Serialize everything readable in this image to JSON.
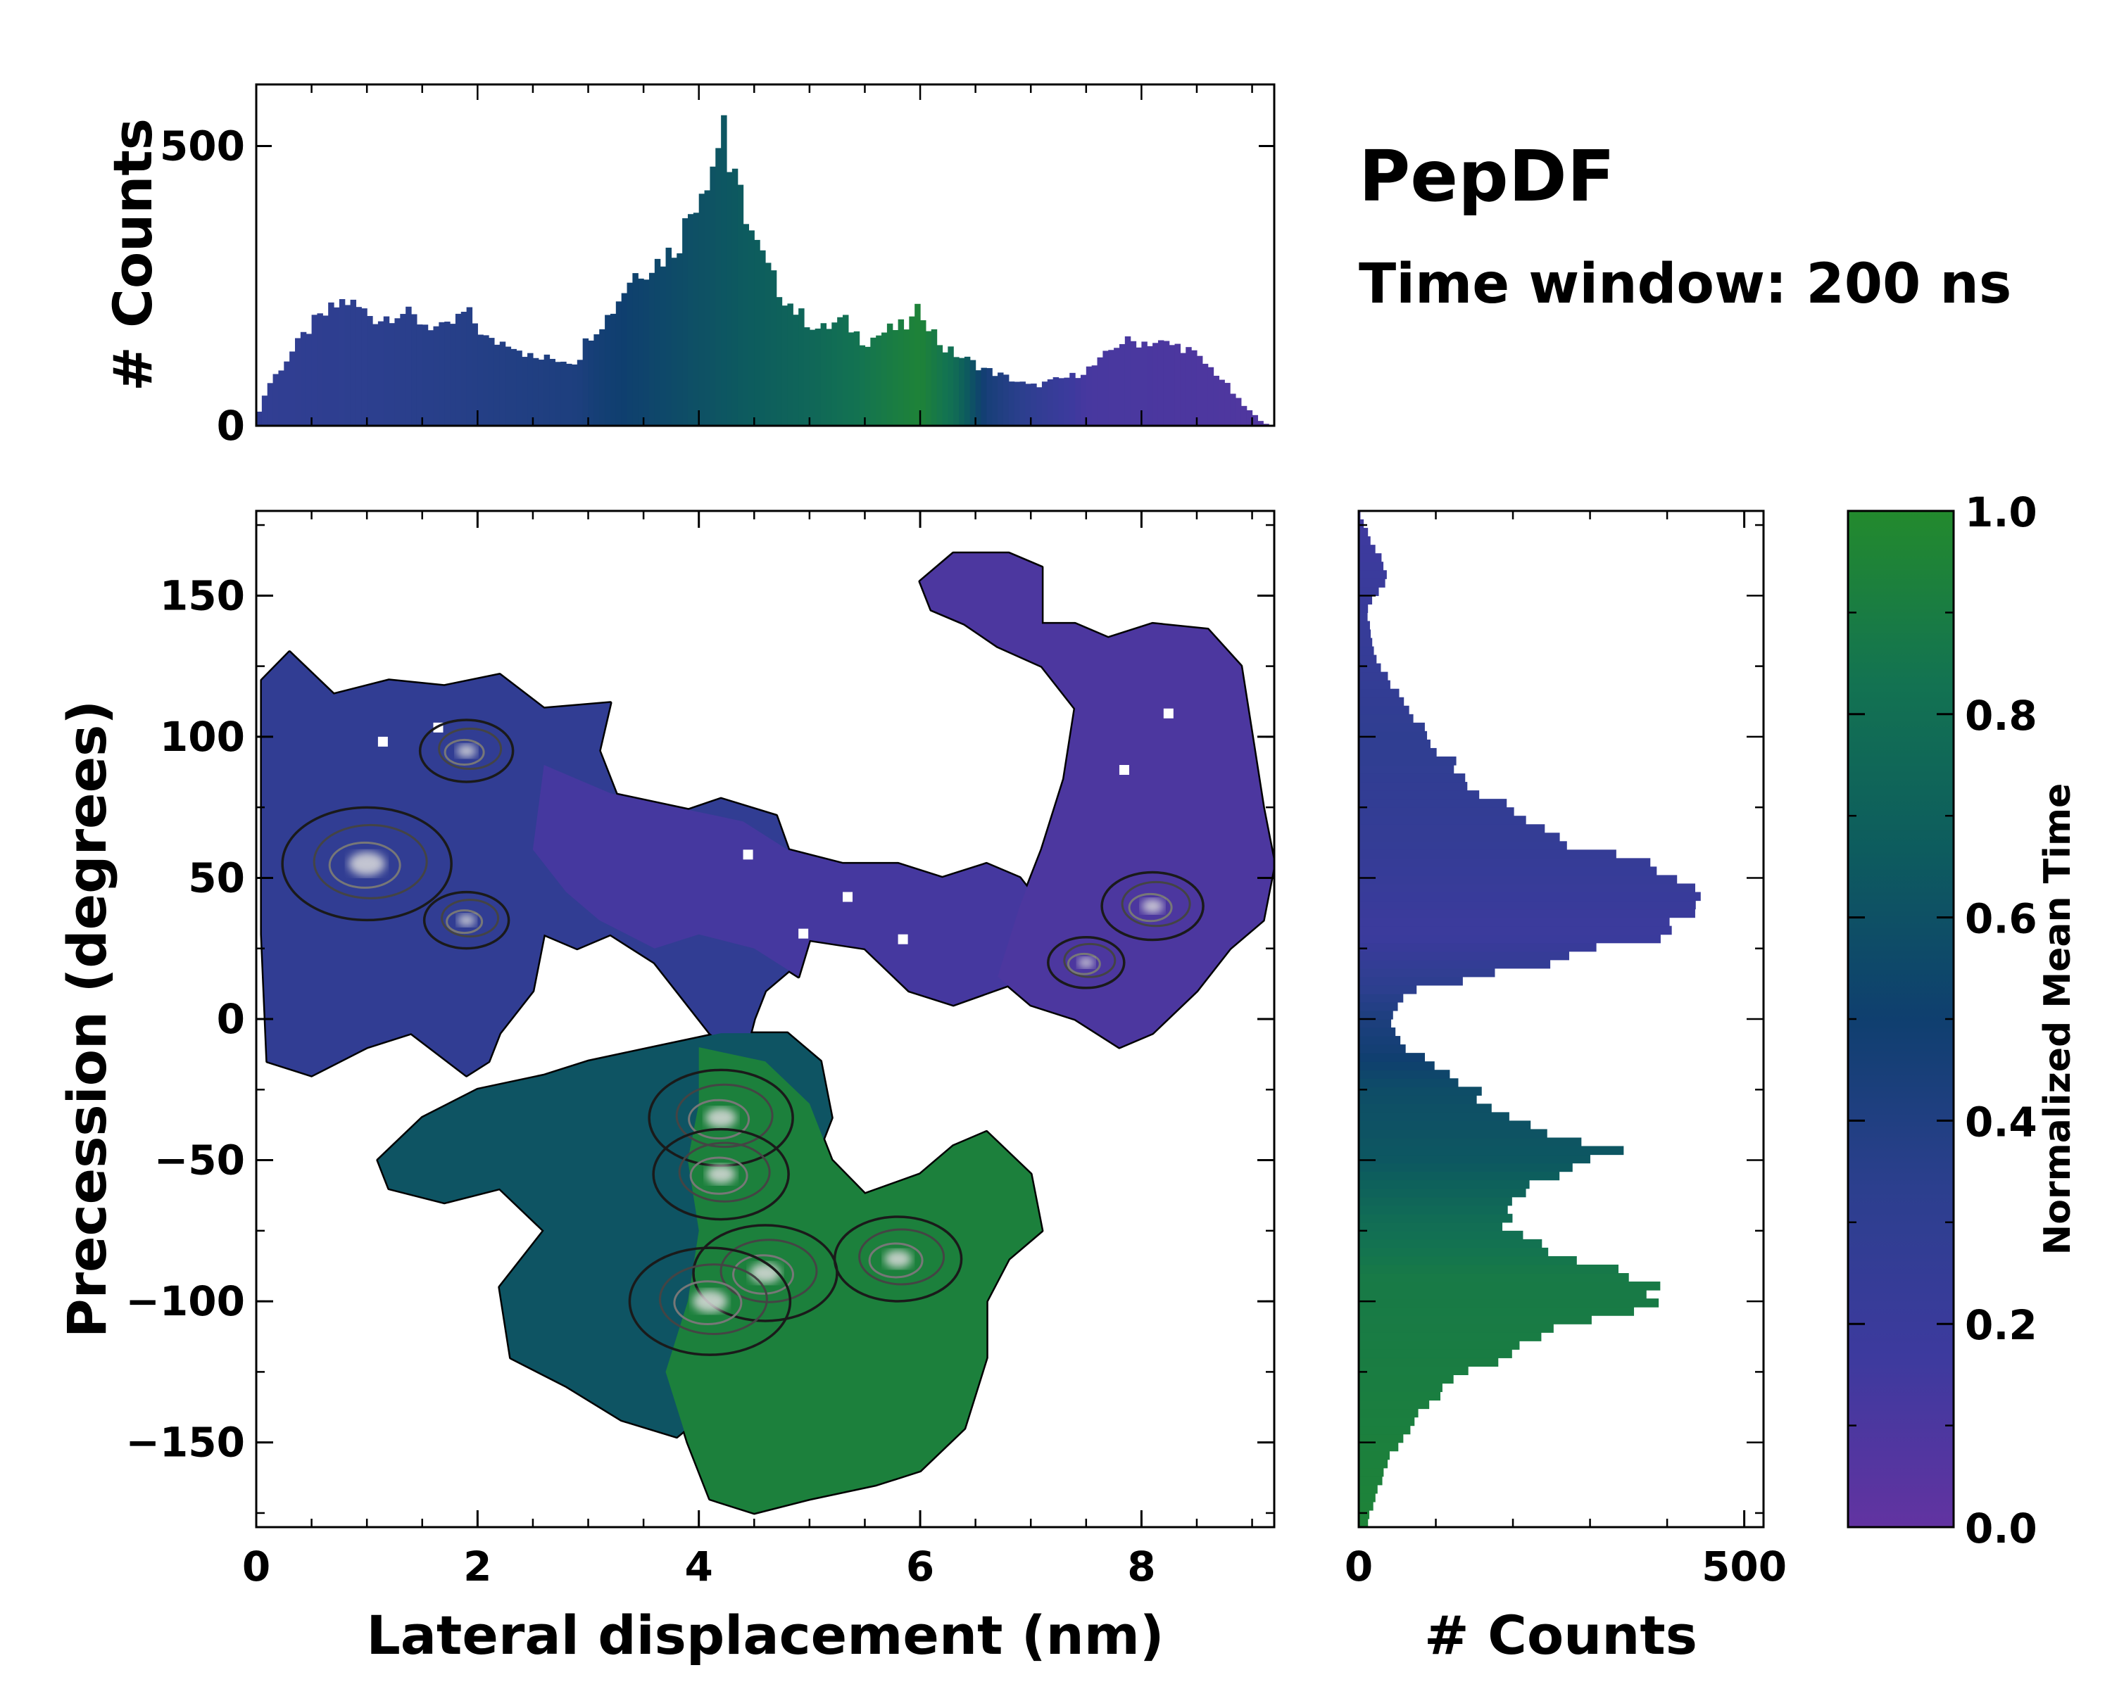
{
  "title": "PepDF",
  "subtitle": "Time window: 200 ns",
  "colors": {
    "cmap": [
      "#6233a1",
      "#3d3a9e",
      "#2c3f8e",
      "#0f3f6f",
      "#0d5c5e",
      "#137351",
      "#238a2d"
    ],
    "frame": "#000000"
  },
  "chart_data": [
    {
      "type": "bar",
      "name": "top-marginal-histogram",
      "ylabel": "# Counts",
      "x_range": [
        0,
        9.2
      ],
      "ylim": [
        0,
        610
      ],
      "y_ticks": [
        0,
        500
      ],
      "bin_width": 0.05,
      "anchors_x": [
        0,
        0.1,
        0.5,
        0.8,
        1.1,
        1.3,
        1.5,
        1.7,
        1.9,
        2.1,
        2.3,
        2.5,
        2.7,
        2.9,
        3.0,
        3.2,
        3.4,
        3.6,
        3.8,
        4.0,
        4.1,
        4.2,
        4.3,
        4.4,
        4.5,
        4.7,
        4.9,
        5.1,
        5.3,
        5.5,
        5.7,
        5.9,
        6.0,
        6.2,
        6.4,
        6.6,
        7.0,
        7.4,
        7.6,
        7.8,
        8.1,
        8.4,
        8.7,
        8.9,
        9.1,
        9.2
      ],
      "anchors_y": [
        10,
        70,
        180,
        225,
        190,
        205,
        185,
        170,
        205,
        150,
        150,
        120,
        120,
        115,
        160,
        200,
        270,
        290,
        320,
        420,
        460,
        510,
        440,
        400,
        330,
        250,
        200,
        170,
        190,
        150,
        170,
        180,
        210,
        140,
        120,
        100,
        70,
        90,
        110,
        150,
        150,
        140,
        90,
        40,
        5,
        0
      ],
      "color_x": [
        0,
        2.9,
        3.1,
        4.0,
        5.0,
        6.0,
        6.3,
        6.6,
        7.5,
        9.2
      ],
      "color_v": [
        0.28,
        0.42,
        0.47,
        0.6,
        0.74,
        0.95,
        0.8,
        0.45,
        0.12,
        0.08
      ]
    },
    {
      "type": "heatmap",
      "name": "main-2d-density",
      "xlabel": "Lateral displacement (nm)",
      "ylabel": "Precession (degrees)",
      "xlim": [
        0,
        9.2
      ],
      "ylim": [
        -180,
        180
      ],
      "x_ticks": [
        0,
        2,
        4,
        6,
        8
      ],
      "y_ticks": [
        -150,
        -100,
        -50,
        0,
        50,
        100,
        150
      ],
      "y_tick_labels": [
        "−150",
        "−100",
        "−50",
        "0",
        "50",
        "100",
        "150"
      ],
      "color_label": "Normalized Mean Time",
      "regions": [
        {
          "name": "upper-left-basin",
          "color_value": 0.28,
          "points": [
            [
              0.05,
              120
            ],
            [
              0.3,
              130
            ],
            [
              0.7,
              115
            ],
            [
              1.2,
              120
            ],
            [
              1.7,
              118
            ],
            [
              2.2,
              122
            ],
            [
              2.6,
              110
            ],
            [
              3.2,
              112
            ],
            [
              3.1,
              95
            ],
            [
              3.3,
              75
            ],
            [
              3.6,
              70
            ],
            [
              4.2,
              78
            ],
            [
              4.7,
              72
            ],
            [
              4.9,
              50
            ],
            [
              5.0,
              35
            ],
            [
              4.9,
              20
            ],
            [
              4.6,
              10
            ],
            [
              4.5,
              0
            ],
            [
              4.4,
              -15
            ],
            [
              4.1,
              -5
            ],
            [
              3.8,
              10
            ],
            [
              3.6,
              20
            ],
            [
              3.2,
              30
            ],
            [
              2.9,
              25
            ],
            [
              2.6,
              30
            ],
            [
              2.5,
              10
            ],
            [
              2.2,
              -5
            ],
            [
              2.1,
              -15
            ],
            [
              1.9,
              -20
            ],
            [
              1.4,
              -5
            ],
            [
              1.0,
              -10
            ],
            [
              0.5,
              -20
            ],
            [
              0.1,
              -15
            ],
            [
              0.05,
              30
            ]
          ]
        },
        {
          "name": "mid-purple-bridge",
          "color_value": 0.13,
          "points": [
            [
              2.6,
              90
            ],
            [
              3.2,
              80
            ],
            [
              3.8,
              75
            ],
            [
              4.4,
              70
            ],
            [
              4.8,
              60
            ],
            [
              5.3,
              55
            ],
            [
              5.8,
              55
            ],
            [
              6.2,
              50
            ],
            [
              6.6,
              55
            ],
            [
              6.9,
              50
            ],
            [
              7.1,
              40
            ],
            [
              7.2,
              25
            ],
            [
              6.8,
              12
            ],
            [
              6.3,
              5
            ],
            [
              5.9,
              10
            ],
            [
              5.5,
              25
            ],
            [
              5.0,
              28
            ],
            [
              4.9,
              15
            ],
            [
              4.5,
              25
            ],
            [
              4.0,
              30
            ],
            [
              3.6,
              25
            ],
            [
              3.1,
              35
            ],
            [
              2.8,
              45
            ],
            [
              2.5,
              60
            ]
          ]
        },
        {
          "name": "top-right-lobe",
          "color_value": 0.1,
          "points": [
            [
              6.0,
              155
            ],
            [
              6.3,
              165
            ],
            [
              6.8,
              165
            ],
            [
              7.1,
              160
            ],
            [
              7.1,
              140
            ],
            [
              7.4,
              140
            ],
            [
              7.7,
              135
            ],
            [
              8.1,
              140
            ],
            [
              8.6,
              138
            ],
            [
              8.9,
              125
            ],
            [
              9.0,
              100
            ],
            [
              9.1,
              75
            ],
            [
              9.2,
              55
            ],
            [
              9.1,
              35
            ],
            [
              8.8,
              25
            ],
            [
              8.5,
              10
            ],
            [
              8.1,
              -5
            ],
            [
              7.8,
              -10
            ],
            [
              7.4,
              0
            ],
            [
              7.0,
              5
            ],
            [
              6.7,
              15
            ],
            [
              6.9,
              40
            ],
            [
              7.1,
              60
            ],
            [
              7.3,
              85
            ],
            [
              7.4,
              110
            ],
            [
              7.1,
              125
            ],
            [
              6.7,
              132
            ],
            [
              6.4,
              140
            ],
            [
              6.1,
              145
            ]
          ]
        },
        {
          "name": "lower-teal-basin",
          "color_value": 0.62,
          "points": [
            [
              1.1,
              -50
            ],
            [
              1.5,
              -35
            ],
            [
              2.0,
              -25
            ],
            [
              2.6,
              -20
            ],
            [
              3.0,
              -15
            ],
            [
              3.6,
              -10
            ],
            [
              4.2,
              -5
            ],
            [
              4.8,
              -5
            ],
            [
              5.1,
              -15
            ],
            [
              5.2,
              -35
            ],
            [
              5.0,
              -55
            ],
            [
              4.8,
              -75
            ],
            [
              4.7,
              -95
            ],
            [
              4.5,
              -115
            ],
            [
              4.2,
              -135
            ],
            [
              3.8,
              -148
            ],
            [
              3.3,
              -142
            ],
            [
              2.8,
              -130
            ],
            [
              2.3,
              -120
            ],
            [
              2.2,
              -95
            ],
            [
              2.6,
              -75
            ],
            [
              2.2,
              -60
            ],
            [
              1.7,
              -65
            ],
            [
              1.2,
              -60
            ]
          ]
        },
        {
          "name": "lower-green-basin",
          "color_value": 0.93,
          "points": [
            [
              4.0,
              -10
            ],
            [
              4.6,
              -15
            ],
            [
              5.0,
              -30
            ],
            [
              5.2,
              -50
            ],
            [
              5.5,
              -62
            ],
            [
              6.0,
              -55
            ],
            [
              6.3,
              -45
            ],
            [
              6.6,
              -40
            ],
            [
              7.0,
              -55
            ],
            [
              7.1,
              -75
            ],
            [
              6.8,
              -85
            ],
            [
              6.6,
              -100
            ],
            [
              6.6,
              -120
            ],
            [
              6.4,
              -145
            ],
            [
              6.0,
              -160
            ],
            [
              5.6,
              -165
            ],
            [
              5.0,
              -170
            ],
            [
              4.5,
              -175
            ],
            [
              4.1,
              -170
            ],
            [
              3.9,
              -150
            ],
            [
              3.7,
              -125
            ],
            [
              3.9,
              -100
            ],
            [
              4.0,
              -75
            ],
            [
              3.9,
              -50
            ],
            [
              4.0,
              -30
            ]
          ]
        }
      ],
      "hotspots": [
        {
          "name": "hotspot-a",
          "x": 1.0,
          "y": 55,
          "level": 1.0
        },
        {
          "name": "hotspot-b",
          "x": 1.9,
          "y": 95,
          "level": 0.55
        },
        {
          "name": "hotspot-c",
          "x": 1.9,
          "y": 35,
          "level": 0.5
        },
        {
          "name": "hotspot-d",
          "x": 4.2,
          "y": -35,
          "level": 0.85
        },
        {
          "name": "hotspot-e",
          "x": 4.2,
          "y": -55,
          "level": 0.8
        },
        {
          "name": "hotspot-f",
          "x": 4.6,
          "y": -90,
          "level": 0.85
        },
        {
          "name": "hotspot-g",
          "x": 4.1,
          "y": -100,
          "level": 0.95
        },
        {
          "name": "hotspot-h",
          "x": 5.8,
          "y": -85,
          "level": 0.75
        },
        {
          "name": "hotspot-i",
          "x": 8.1,
          "y": 40,
          "level": 0.6
        },
        {
          "name": "hotspot-j",
          "x": 7.5,
          "y": 20,
          "level": 0.45
        }
      ]
    },
    {
      "type": "bar",
      "name": "right-marginal-histogram",
      "xlabel": "# Counts",
      "orientation": "horizontal",
      "xlim": [
        0,
        525
      ],
      "x_ticks": [
        0,
        500
      ],
      "y_range": [
        -180,
        180
      ],
      "bin_width": 3,
      "anchors_y": [
        -180,
        -170,
        -155,
        -140,
        -125,
        -110,
        -100,
        -95,
        -85,
        -75,
        -65,
        -55,
        -47,
        -40,
        -30,
        -20,
        -10,
        0,
        10,
        20,
        30,
        40,
        50,
        60,
        70,
        85,
        100,
        115,
        130,
        145,
        158,
        170,
        180
      ],
      "anchors_v": [
        10,
        20,
        40,
        80,
        140,
        260,
        370,
        380,
        280,
        190,
        210,
        250,
        330,
        250,
        170,
        130,
        60,
        40,
        70,
        250,
        400,
        470,
        420,
        300,
        210,
        140,
        90,
        50,
        20,
        10,
        40,
        15,
        0
      ],
      "color_y": [
        -180,
        -120,
        -90,
        -70,
        -50,
        -25,
        -10,
        0,
        30,
        60,
        100,
        180
      ],
      "color_v": [
        0.95,
        0.9,
        0.88,
        0.78,
        0.64,
        0.58,
        0.47,
        0.42,
        0.18,
        0.25,
        0.3,
        0.15
      ]
    },
    {
      "type": "colorbar",
      "name": "colorbar",
      "label": "Normalized Mean Time",
      "ylim": [
        0,
        1
      ],
      "ticks": [
        0,
        0.2,
        0.4,
        0.6,
        0.8,
        1.0
      ],
      "tick_labels": [
        "0.0",
        "0.2",
        "0.4",
        "0.6",
        "0.8",
        "1.0"
      ]
    }
  ]
}
